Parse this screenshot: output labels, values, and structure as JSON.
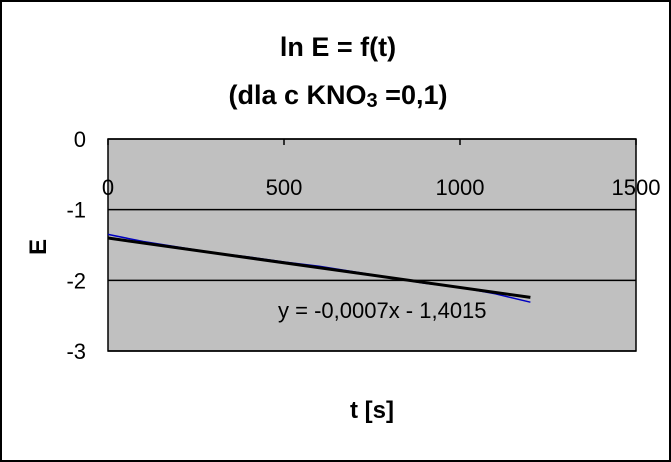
{
  "chart_data": {
    "type": "line",
    "title_line1": "ln E = f(t)",
    "title_line2_prefix": "(dla c KNO",
    "title_line2_sub": "3",
    "title_line2_suffix": " =0,1)",
    "xlabel": "t [s]",
    "ylabel": "E",
    "xlim": [
      0,
      1500
    ],
    "ylim": [
      -3,
      0
    ],
    "x_ticks": [
      0,
      500,
      1000,
      1500
    ],
    "y_ticks": [
      0,
      -1,
      -2,
      -3
    ],
    "grid": true,
    "plot_background": "#c0c0c0",
    "series": [
      {
        "color": "#0000c0",
        "x": [
          0,
          100,
          200,
          300,
          400,
          500,
          600,
          700,
          800,
          900,
          1000,
          1100,
          1200
        ],
        "y": [
          -1.35,
          -1.45,
          -1.53,
          -1.61,
          -1.67,
          -1.74,
          -1.8,
          -1.88,
          -1.96,
          -2.04,
          -2.1,
          -2.19,
          -2.31
        ]
      }
    ],
    "trendline": {
      "color": "#000000",
      "slope": -0.0007,
      "intercept": -1.4015,
      "x_range": [
        0,
        1200
      ],
      "equation": "y = -0,0007x - 1,4015"
    }
  }
}
